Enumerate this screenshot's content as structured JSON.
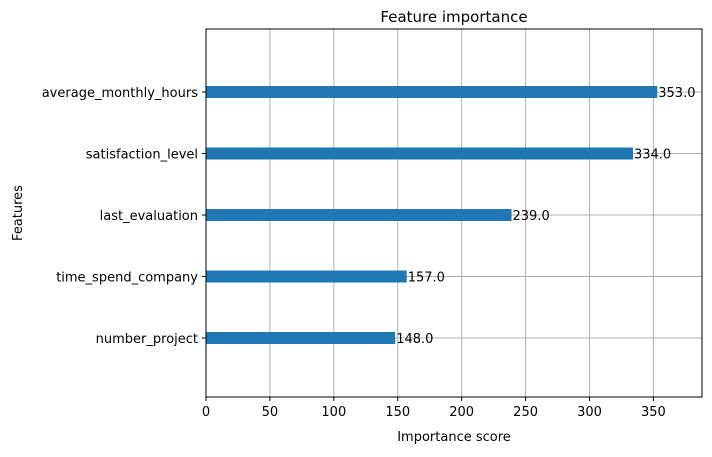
{
  "chart_data": {
    "type": "bar",
    "orientation": "horizontal",
    "title": "Feature importance",
    "xlabel": "Importance score",
    "ylabel": "Features",
    "categories": [
      "average_monthly_hours",
      "satisfaction_level",
      "last_evaluation",
      "time_spend_company",
      "number_project"
    ],
    "values": [
      353,
      334,
      239,
      157,
      148
    ],
    "value_labels": [
      "353.0",
      "334.0",
      "239.0",
      "157.0",
      "148.0"
    ],
    "xlim": [
      0,
      388
    ],
    "xticks": [
      0,
      50,
      100,
      150,
      200,
      250,
      300,
      350
    ],
    "grid": true,
    "bar_color": "#1f77b4",
    "grid_color": "#b0b0b0"
  }
}
